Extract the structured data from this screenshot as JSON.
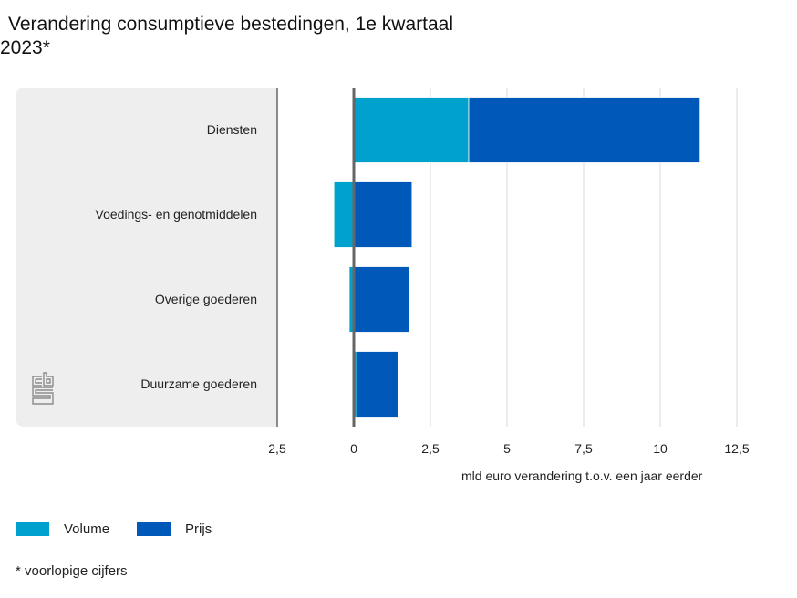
{
  "chart_data": {
    "type": "bar",
    "orientation": "horizontal",
    "stacked": true,
    "title": "Verandering consumptieve bestedingen, 1e kwartaal 2023*",
    "xlabel": "mld euro verandering t.o.v. een jaar eerder",
    "ylabel": "",
    "categories": [
      "Diensten",
      "Voedings- en genotmiddelen",
      "Overige goederen",
      "Duurzame goederen"
    ],
    "series": [
      {
        "name": "Volume",
        "color": "#00a1cd",
        "values": [
          3.75,
          -0.65,
          -0.15,
          0.1
        ]
      },
      {
        "name": "Prijs",
        "color": "#0058b8",
        "values": [
          7.55,
          1.9,
          1.8,
          1.35
        ]
      }
    ],
    "xlim": [
      -2.5,
      12.5
    ],
    "xticks": [
      -2.5,
      0,
      2.5,
      5,
      7.5,
      10,
      12.5
    ],
    "xtick_labels": [
      "2,5",
      "0",
      "2,5",
      "5",
      "7,5",
      "10",
      "12,5"
    ],
    "grid": true,
    "legend": "bottom-left"
  },
  "title_line1": "Verandering consumptieve bestedingen, 1e kwartaal",
  "title_line2": "2023*",
  "footnote": "* voorlopige cijfers",
  "logo": "cbs-logo-icon"
}
